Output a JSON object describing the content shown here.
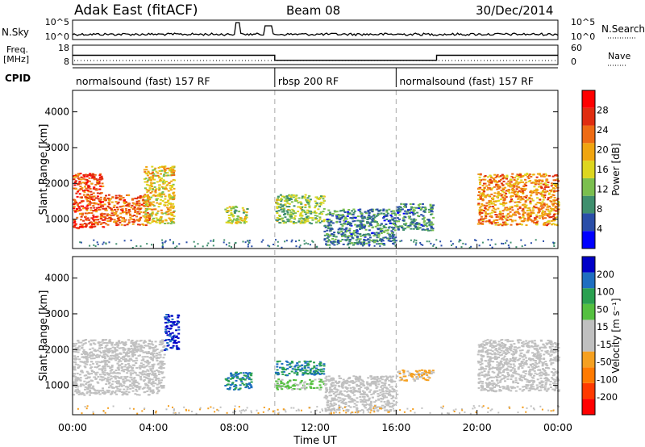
{
  "header": {
    "title": "Adak East (fitACF)",
    "beam": "Beam 08",
    "date": "30/Dec/2014"
  },
  "left_labels": {
    "nsky": "N.Sky",
    "freq_line1": "Freq.",
    "freq_line2": "[MHz]",
    "cpid": "CPID"
  },
  "right_labels": {
    "nsearch": "N.Search",
    "nave": "Nave"
  },
  "colors": {
    "power_scale": [
      "#0000ff",
      "#2a4ea8",
      "#3f8f6e",
      "#7bbf4f",
      "#ddd61f",
      "#f0a510",
      "#ee6b14",
      "#e02d10",
      "#ff0000"
    ],
    "velocity_scale": [
      "#ff0000",
      "#ff3a00",
      "#ff7a00",
      "#f5a020",
      "#c0c0c0",
      "#c0c0c0",
      "#55c040",
      "#2aa050",
      "#1e6ec0",
      "#0000c8"
    ]
  },
  "chart_data": [
    {
      "type": "line",
      "panel": "noise",
      "ylabel": "N.Sky",
      "y_tick_labels": [
        "10^5",
        "10^0"
      ],
      "y2_tick_labels": [
        "10^5",
        "10^0"
      ],
      "y2label": "N.Search"
    },
    {
      "type": "line",
      "panel": "frequency",
      "ylabel": "Freq. [MHz]",
      "y_tick_labels": [
        "18",
        "8"
      ],
      "y2_tick_labels": [
        "60",
        "0"
      ],
      "y2label": "Nave",
      "series": [
        {
          "values": [
            [
              0,
              12.8
            ],
            [
              10,
              12.8
            ],
            [
              10,
              10.2
            ],
            [
              18,
              10.2
            ],
            [
              18,
              12.8
            ],
            [
              24,
              12.8
            ]
          ]
        }
      ]
    },
    {
      "type": "table",
      "panel": "cpid",
      "segments": [
        {
          "start": 0,
          "end": 10,
          "label": "normalsound (fast) 157 RF"
        },
        {
          "start": 10,
          "end": 16,
          "label": "rbsp 200 RF"
        },
        {
          "start": 16,
          "end": 24,
          "label": "normalsound (fast) 157 RF"
        }
      ]
    },
    {
      "type": "heatmap",
      "panel": "power",
      "ylabel": "Slant Range [km]",
      "xlim": [
        0,
        24
      ],
      "ylim": [
        180,
        4600
      ],
      "y_ticks": [
        1000,
        2000,
        3000,
        4000
      ],
      "colorbar": {
        "label": "Power [dB]",
        "ticks": [
          "28",
          "24",
          "20",
          "16",
          "12",
          "8",
          "4"
        ],
        "range": [
          0,
          30
        ]
      },
      "echo_regions": [
        {
          "t0": 0.0,
          "t1": 1.5,
          "r0": 750,
          "r1": 2300,
          "value": 24
        },
        {
          "t0": 1.5,
          "t1": 3.8,
          "r0": 850,
          "r1": 1700,
          "value": 22
        },
        {
          "t0": 3.5,
          "t1": 5.0,
          "r0": 900,
          "r1": 2500,
          "value": 16
        },
        {
          "t0": 7.5,
          "t1": 8.6,
          "r0": 900,
          "r1": 1400,
          "value": 14
        },
        {
          "t0": 10.0,
          "t1": 12.4,
          "r0": 900,
          "r1": 1700,
          "value": 12
        },
        {
          "t0": 12.4,
          "t1": 16.0,
          "r0": 300,
          "r1": 1300,
          "value": 8
        },
        {
          "t0": 16.0,
          "t1": 17.8,
          "r0": 700,
          "r1": 1450,
          "value": 8
        },
        {
          "t0": 20.0,
          "t1": 24.0,
          "r0": 850,
          "r1": 2300,
          "value": 20
        }
      ]
    },
    {
      "type": "heatmap",
      "panel": "velocity",
      "xlabel": "Time UT",
      "ylabel": "Slant Range [km]",
      "xlim": [
        0,
        24
      ],
      "ylim": [
        180,
        4600
      ],
      "x_ticks": [
        "00:00",
        "04:00",
        "08:00",
        "12:00",
        "16:00",
        "20:00",
        "00:00"
      ],
      "y_ticks": [
        1000,
        2000,
        3000,
        4000
      ],
      "colorbar": {
        "label": "Velocity [m s⁻¹]",
        "ticks": [
          "200",
          "100",
          "50",
          "15",
          "-15",
          "-50",
          "-100",
          "-200"
        ],
        "range": [
          -250,
          250
        ]
      },
      "echo_regions": [
        {
          "t0": 0.0,
          "t1": 4.5,
          "r0": 750,
          "r1": 2300,
          "value": 0
        },
        {
          "t0": 4.5,
          "t1": 5.2,
          "r0": 2000,
          "r1": 3000,
          "value": 210
        },
        {
          "t0": 7.5,
          "t1": 8.8,
          "r0": 900,
          "r1": 1400,
          "value": 150
        },
        {
          "t0": 10.0,
          "t1": 12.4,
          "r0": 1300,
          "r1": 1700,
          "value": 150
        },
        {
          "t0": 10.0,
          "t1": 12.4,
          "r0": 900,
          "r1": 1200,
          "value": 60
        },
        {
          "t0": 12.4,
          "t1": 16.0,
          "r0": 300,
          "r1": 1300,
          "value": 0
        },
        {
          "t0": 16.0,
          "t1": 17.8,
          "r0": 1150,
          "r1": 1450,
          "value": -60
        },
        {
          "t0": 20.0,
          "t1": 24.0,
          "r0": 850,
          "r1": 2300,
          "value": 0
        }
      ]
    }
  ]
}
